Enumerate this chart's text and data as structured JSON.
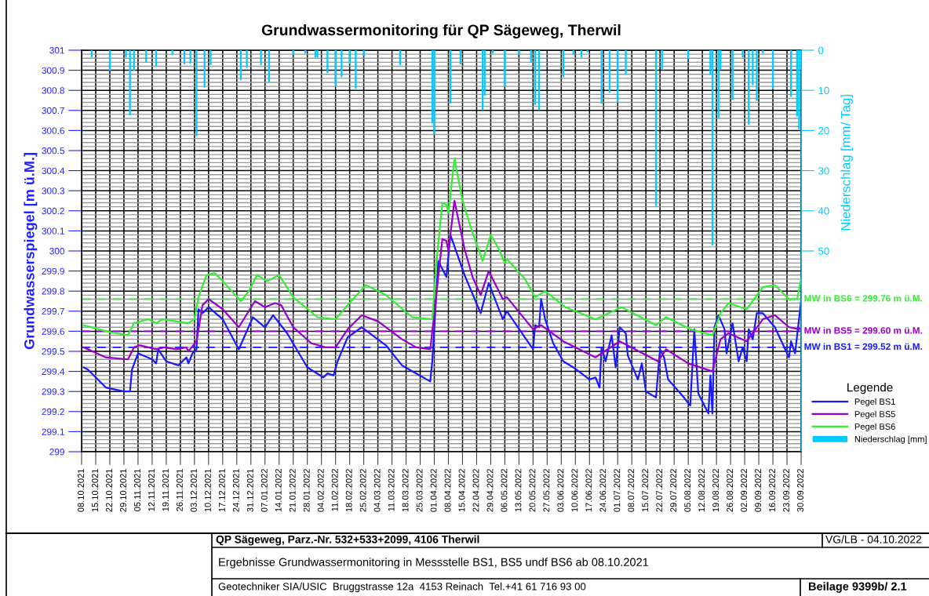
{
  "chart_data": {
    "type": "line",
    "title": "Grundwassermonitoring für QP Sägeweg, Therwil",
    "ylabel": "Grundwasserspiegel [m ü.M.]",
    "y2label": "Niederschlag [mm/ Tag]",
    "legend_title": "Legende",
    "xlim": [
      "2021-10-08",
      "2022-09-30"
    ],
    "xticks": [
      {
        "value": "2021-10-08",
        "label": "08.10.2021"
      },
      {
        "value": "2021-10-15",
        "label": "15.10.2021"
      },
      {
        "value": "2021-10-22",
        "label": "22.10.2021"
      },
      {
        "value": "2021-10-29",
        "label": "29.10.2021"
      },
      {
        "value": "2021-11-05",
        "label": "05.11.2021"
      },
      {
        "value": "2021-11-12",
        "label": "12.11.2021"
      },
      {
        "value": "2021-11-19",
        "label": "19.11.2021"
      },
      {
        "value": "2021-11-26",
        "label": "26.11.2021"
      },
      {
        "value": "2021-12-03",
        "label": "03.12.2021"
      },
      {
        "value": "2021-12-10",
        "label": "10.12.2021"
      },
      {
        "value": "2021-12-17",
        "label": "17.12.2021"
      },
      {
        "value": "2021-12-24",
        "label": "24.12.2021"
      },
      {
        "value": "2021-12-31",
        "label": "31.12.2021"
      },
      {
        "value": "2022-01-07",
        "label": "07.01.2022"
      },
      {
        "value": "2022-01-14",
        "label": "14.01.2022"
      },
      {
        "value": "2022-01-21",
        "label": "21.01.2022"
      },
      {
        "value": "2022-01-28",
        "label": "28.01.2022"
      },
      {
        "value": "2022-02-04",
        "label": "04.02.2022"
      },
      {
        "value": "2022-02-11",
        "label": "11.02.2022"
      },
      {
        "value": "2022-02-18",
        "label": "18.02.2022"
      },
      {
        "value": "2022-02-25",
        "label": "25.02.2022"
      },
      {
        "value": "2022-03-04",
        "label": "04.03.2022"
      },
      {
        "value": "2022-03-11",
        "label": "11.03.2022"
      },
      {
        "value": "2022-03-18",
        "label": "18.03.2022"
      },
      {
        "value": "2022-03-25",
        "label": "25.03.2022"
      },
      {
        "value": "2022-04-01",
        "label": "01.04.2022"
      },
      {
        "value": "2022-04-08",
        "label": "08.04.2022"
      },
      {
        "value": "2022-04-15",
        "label": "15.04.2022"
      },
      {
        "value": "2022-04-22",
        "label": "22.04.2022"
      },
      {
        "value": "2022-04-29",
        "label": "29.04.2022"
      },
      {
        "value": "2022-05-06",
        "label": "06.05.2022"
      },
      {
        "value": "2022-05-13",
        "label": "13.05.2022"
      },
      {
        "value": "2022-05-20",
        "label": "20.05.2022"
      },
      {
        "value": "2022-05-27",
        "label": "27.05.2022"
      },
      {
        "value": "2022-06-03",
        "label": "03.06.2022"
      },
      {
        "value": "2022-06-10",
        "label": "10.06.2022"
      },
      {
        "value": "2022-06-17",
        "label": "17.06.2022"
      },
      {
        "value": "2022-06-24",
        "label": "24.06.2022"
      },
      {
        "value": "2022-07-01",
        "label": "01.07.2022"
      },
      {
        "value": "2022-07-08",
        "label": "08.07.2022"
      },
      {
        "value": "2022-07-15",
        "label": "15.07.2022"
      },
      {
        "value": "2022-07-22",
        "label": "22.07.2022"
      },
      {
        "value": "2022-07-29",
        "label": "29.07.2022"
      },
      {
        "value": "2022-08-05",
        "label": "05.08.2022"
      },
      {
        "value": "2022-08-12",
        "label": "12.08.2022"
      },
      {
        "value": "2022-08-19",
        "label": "19.08.2022"
      },
      {
        "value": "2022-08-26",
        "label": "26.08.2022"
      },
      {
        "value": "2022-09-02",
        "label": "02.09.2022"
      },
      {
        "value": "2022-09-09",
        "label": "09.09.2022"
      },
      {
        "value": "2022-09-16",
        "label": "16.09.2022"
      },
      {
        "value": "2022-09-23",
        "label": "23.09.2022"
      },
      {
        "value": "2022-09-30",
        "label": "30.09.2022"
      }
    ],
    "ylim": [
      299,
      301
    ],
    "yticks": [
      299,
      299.1,
      299.2,
      299.3,
      299.4,
      299.5,
      299.6,
      299.7,
      299.8,
      299.9,
      300,
      300.1,
      300.2,
      300.3,
      300.4,
      300.5,
      300.6,
      300.7,
      300.8,
      300.9,
      301
    ],
    "y2lim": [
      100,
      0
    ],
    "y2ticks": [
      0,
      10,
      20,
      30,
      40,
      50
    ],
    "grid": true,
    "legend": "right",
    "series": [
      {
        "name": "Pegel BS1",
        "color": "#1a1aff",
        "x": [
          "2021-10-09",
          "2021-10-11",
          "2021-10-20",
          "2021-10-29",
          "2021-11-01",
          "2021-11-02",
          "2021-11-05",
          "2021-11-12",
          "2021-11-14",
          "2021-11-15",
          "2021-11-19",
          "2021-11-25",
          "2021-11-29",
          "2021-11-30",
          "2021-12-02",
          "2021-12-04",
          "2021-12-05",
          "2021-12-07",
          "2021-12-10",
          "2021-12-17",
          "2021-12-25",
          "2022-01-01",
          "2022-01-07",
          "2022-01-11",
          "2022-01-18",
          "2022-01-28",
          "2022-02-05",
          "2022-02-07",
          "2022-02-10",
          "2022-02-12",
          "2022-02-17",
          "2022-02-24",
          "2022-03-08",
          "2022-03-16",
          "2022-03-23",
          "2022-03-30",
          "2022-03-31",
          "2022-04-03",
          "2022-04-07",
          "2022-04-09",
          "2022-04-16",
          "2022-04-24",
          "2022-04-28",
          "2022-05-05",
          "2022-05-07",
          "2022-05-20",
          "2022-05-21",
          "2022-05-23",
          "2022-05-24",
          "2022-05-26",
          "2022-05-30",
          "2022-06-04",
          "2022-06-09",
          "2022-06-17",
          "2022-06-20",
          "2022-06-22",
          "2022-06-23",
          "2022-06-25",
          "2022-06-28",
          "2022-06-30",
          "2022-07-02",
          "2022-07-05",
          "2022-07-06",
          "2022-07-11",
          "2022-07-13",
          "2022-07-15",
          "2022-07-20",
          "2022-07-22",
          "2022-07-24",
          "2022-07-26",
          "2022-08-02",
          "2022-08-06",
          "2022-08-08",
          "2022-08-10",
          "2022-08-15",
          "2022-08-16",
          "2022-08-17",
          "2022-08-18",
          "2022-08-20",
          "2022-08-23",
          "2022-08-24",
          "2022-08-27",
          "2022-08-30",
          "2022-09-01",
          "2022-09-03",
          "2022-09-04",
          "2022-09-06",
          "2022-09-08",
          "2022-09-11",
          "2022-09-17",
          "2022-09-24",
          "2022-09-25",
          "2022-09-27",
          "2022-09-30"
        ],
        "values": [
          299.42,
          299.41,
          299.32,
          299.3,
          299.3,
          299.41,
          299.49,
          299.46,
          299.44,
          299.51,
          299.45,
          299.43,
          299.47,
          299.44,
          299.49,
          299.51,
          299.71,
          299.69,
          299.72,
          299.66,
          299.51,
          299.67,
          299.62,
          299.68,
          299.59,
          299.42,
          299.37,
          299.39,
          299.38,
          299.45,
          299.57,
          299.62,
          299.53,
          299.43,
          299.39,
          299.35,
          299.45,
          299.95,
          299.87,
          300.08,
          299.88,
          299.69,
          299.84,
          299.66,
          299.7,
          299.51,
          299.63,
          299.62,
          299.76,
          299.66,
          299.54,
          299.45,
          299.42,
          299.36,
          299.37,
          299.32,
          299.52,
          299.45,
          299.58,
          299.42,
          299.62,
          299.59,
          299.48,
          299.36,
          299.44,
          299.3,
          299.27,
          299.51,
          299.47,
          299.36,
          299.28,
          299.23,
          299.61,
          299.29,
          299.19,
          299.38,
          299.19,
          299.62,
          299.68,
          299.61,
          299.49,
          299.64,
          299.45,
          299.52,
          299.45,
          299.61,
          299.56,
          299.69,
          299.69,
          299.62,
          299.47,
          299.55,
          299.49,
          299.75
        ]
      },
      {
        "name": "Pegel BS5",
        "color": "#9900cc",
        "x": [
          "2021-10-09",
          "2021-10-20",
          "2021-10-31",
          "2021-11-03",
          "2021-11-06",
          "2021-11-14",
          "2021-11-18",
          "2021-11-24",
          "2021-11-29",
          "2021-11-30",
          "2021-12-04",
          "2021-12-07",
          "2021-12-10",
          "2021-12-17",
          "2021-12-25",
          "2022-01-02",
          "2022-01-07",
          "2022-01-12",
          "2022-01-15",
          "2022-01-21",
          "2022-01-30",
          "2022-02-06",
          "2022-02-11",
          "2022-02-17",
          "2022-02-24",
          "2022-03-04",
          "2022-03-16",
          "2022-03-23",
          "2022-03-30",
          "2022-04-01",
          "2022-04-05",
          "2022-04-07",
          "2022-04-08",
          "2022-04-11",
          "2022-04-16",
          "2022-04-20",
          "2022-04-24",
          "2022-04-28",
          "2022-05-05",
          "2022-05-07",
          "2022-05-20",
          "2022-05-24",
          "2022-06-04",
          "2022-06-20",
          "2022-07-02",
          "2022-07-21",
          "2022-07-25",
          "2022-08-05",
          "2022-08-17",
          "2022-08-21",
          "2022-08-25",
          "2022-09-03",
          "2022-09-11",
          "2022-09-17",
          "2022-09-24",
          "2022-09-29",
          "2022-09-30"
        ],
        "values": [
          299.52,
          299.47,
          299.46,
          299.52,
          299.53,
          299.51,
          299.52,
          299.51,
          299.52,
          299.5,
          299.55,
          299.73,
          299.76,
          299.71,
          299.62,
          299.75,
          299.72,
          299.74,
          299.73,
          299.62,
          299.54,
          299.52,
          299.52,
          299.61,
          299.68,
          299.65,
          299.56,
          299.52,
          299.51,
          299.69,
          300.06,
          300.05,
          300.0,
          300.25,
          300.01,
          299.87,
          299.78,
          299.9,
          299.76,
          299.77,
          299.61,
          299.63,
          299.55,
          299.47,
          299.55,
          299.45,
          299.51,
          299.44,
          299.4,
          299.56,
          299.59,
          299.55,
          299.66,
          299.68,
          299.62,
          299.61,
          299.62
        ]
      },
      {
        "name": "Pegel BS6",
        "color": "#33ee33",
        "x": [
          "2021-10-09",
          "2021-10-13",
          "2021-10-20",
          "2021-10-31",
          "2021-11-03",
          "2021-11-10",
          "2021-11-14",
          "2021-11-17",
          "2021-11-30",
          "2021-12-03",
          "2021-12-05",
          "2021-12-09",
          "2021-12-13",
          "2021-12-17",
          "2021-12-26",
          "2021-12-30",
          "2022-01-03",
          "2022-01-08",
          "2022-01-14",
          "2022-01-21",
          "2022-02-02",
          "2022-02-11",
          "2022-02-17",
          "2022-02-26",
          "2022-03-08",
          "2022-03-21",
          "2022-03-31",
          "2022-04-02",
          "2022-04-05",
          "2022-04-07",
          "2022-04-08",
          "2022-04-11",
          "2022-04-15",
          "2022-04-20",
          "2022-04-25",
          "2022-04-29",
          "2022-05-03",
          "2022-05-06",
          "2022-05-07",
          "2022-05-16",
          "2022-05-21",
          "2022-05-26",
          "2022-06-05",
          "2022-06-20",
          "2022-07-03",
          "2022-07-20",
          "2022-07-25",
          "2022-08-06",
          "2022-08-17",
          "2022-08-21",
          "2022-08-25",
          "2022-09-03",
          "2022-09-11",
          "2022-09-17",
          "2022-09-24",
          "2022-09-28",
          "2022-09-30"
        ],
        "values": [
          299.63,
          299.62,
          299.6,
          299.58,
          299.64,
          299.66,
          299.64,
          299.66,
          299.64,
          299.66,
          299.77,
          299.88,
          299.89,
          299.85,
          299.75,
          299.8,
          299.88,
          299.85,
          299.88,
          299.77,
          299.67,
          299.66,
          299.73,
          299.83,
          299.78,
          299.67,
          299.66,
          299.94,
          300.24,
          300.23,
          300.19,
          300.46,
          300.25,
          300.09,
          299.95,
          300.08,
          300.01,
          299.94,
          299.96,
          299.86,
          299.77,
          299.8,
          299.72,
          299.66,
          299.72,
          299.63,
          299.67,
          299.61,
          299.58,
          299.69,
          299.74,
          299.71,
          299.82,
          299.83,
          299.76,
          299.76,
          299.86
        ]
      },
      {
        "name": "Niederschlag [mm]",
        "color": "#00ccff",
        "type": "bar",
        "axis": "y2",
        "x": [
          "2021-10-13",
          "2021-10-22",
          "2021-10-30",
          "2021-11-01",
          "2021-11-03",
          "2021-11-09",
          "2021-11-14",
          "2021-11-22",
          "2021-11-28",
          "2021-12-01",
          "2021-12-04",
          "2021-12-08",
          "2021-12-11",
          "2021-12-26",
          "2021-12-29",
          "2022-01-05",
          "2022-01-09",
          "2022-01-21",
          "2022-01-27",
          "2022-02-01",
          "2022-02-02",
          "2022-02-07",
          "2022-02-11",
          "2022-02-14",
          "2022-02-18",
          "2022-02-21",
          "2022-02-25",
          "2022-03-15",
          "2022-03-31",
          "2022-04-01",
          "2022-04-09",
          "2022-04-14",
          "2022-04-25",
          "2022-04-26",
          "2022-04-30",
          "2022-05-06",
          "2022-05-13",
          "2022-05-19",
          "2022-05-21",
          "2022-05-23",
          "2022-06-04",
          "2022-06-09",
          "2022-06-13",
          "2022-06-16",
          "2022-06-23",
          "2022-06-27",
          "2022-07-01",
          "2022-07-05",
          "2022-07-20",
          "2022-07-23",
          "2022-08-05",
          "2022-08-16",
          "2022-08-17",
          "2022-08-20",
          "2022-08-21",
          "2022-08-27",
          "2022-09-01",
          "2022-09-04",
          "2022-09-06",
          "2022-09-08",
          "2022-09-11",
          "2022-09-16",
          "2022-09-25",
          "2022-09-28",
          "2022-09-29",
          "2022-09-30"
        ],
        "values": [
          1.8,
          5.1,
          1.8,
          16.2,
          5.1,
          3.1,
          4.1,
          1.2,
          3.5,
          3.3,
          21.4,
          9.3,
          3.7,
          7.4,
          4.4,
          3.7,
          8.0,
          1.2,
          0.8,
          1.8,
          1.8,
          5.7,
          9.0,
          6.7,
          3.5,
          9.6,
          1.5,
          3.7,
          18.2,
          20.8,
          13.3,
          3.5,
          14.9,
          11.3,
          0.8,
          9.0,
          1.2,
          3.1,
          13.6,
          14.9,
          6.7,
          1.2,
          1.8,
          0.5,
          13.3,
          10.6,
          12.9,
          6.1,
          38.8,
          4.8,
          2.2,
          6.1,
          48.6,
          16.9,
          4.8,
          12.3,
          1.8,
          18.5,
          8.7,
          12.6,
          0.8,
          9.7,
          11.6,
          16.5,
          19.8,
          4.8
        ]
      }
    ],
    "ref_lines": [
      {
        "axis": "y",
        "value": 299.76,
        "label": "MW in BS6 = 299.76 m ü.M.",
        "color": "#33ee33",
        "line_style": "dashed"
      },
      {
        "axis": "y",
        "value": 299.6,
        "label": "MW in BS5 = 299.60 m ü.M.",
        "color": "#9900cc",
        "line_style": "dashed"
      },
      {
        "axis": "y",
        "value": 299.52,
        "label": "MW in BS1 = 299.52 m ü.M.",
        "color": "#1a1aff",
        "line_style": "dashed"
      }
    ],
    "annotations": [
      "QP Sägeweg, Parz.-Nr. 532+533+2099, 4106 Therwil",
      "VG/LB - 04.10.2022",
      "Ergebnisse Grundwassermonitoring in Messstelle BS1, BS5 undf BS6 ab 08.10.2021",
      "Geotechniker SIA/USIC  Bruggstrasse 12a  4153 Reinach  Tel.+41 61 716 93 00",
      "Beilage 9399b/ 2.1"
    ]
  }
}
